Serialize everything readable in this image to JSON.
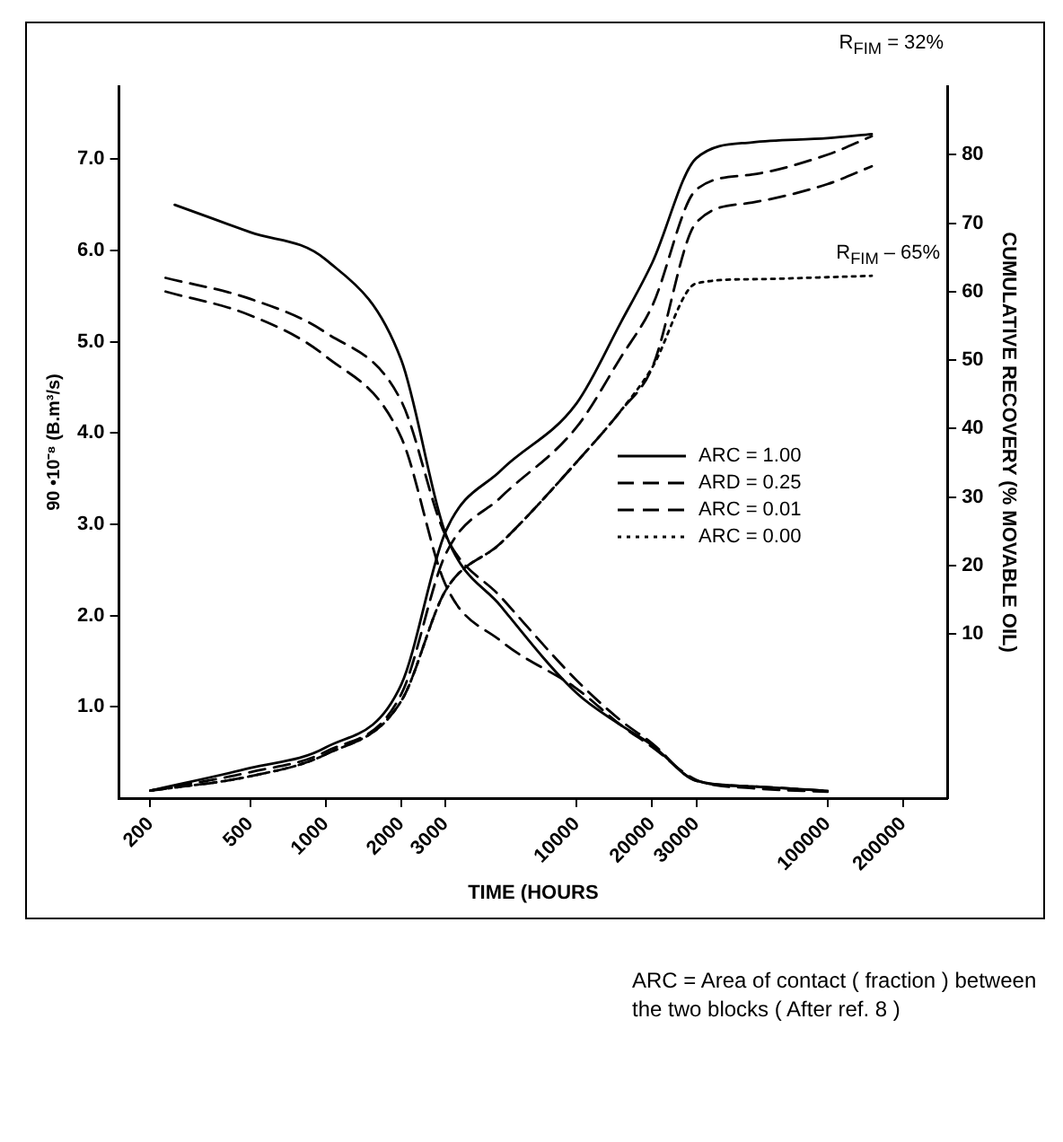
{
  "chart_data": {
    "type": "line",
    "xlabel": "TIME (HOURS",
    "ylabel": "90 •10⁻⁸ (B.m³/s)",
    "y2label": "CUMULATIVE RECOVERY (% MOVABLE OIL)",
    "annotations": [
      "R$_{FIM}$ = 32%",
      "R$_{FIM}$ – 65%",
      "ARC = Area of contact ( fraction ) between the two blocks ( After ref. 8 )"
    ],
    "log": "x",
    "xlim": [
      150,
      300000
    ],
    "xticks": [
      200,
      500,
      1000,
      2000,
      3000,
      10000,
      20000,
      30000,
      100000,
      200000
    ],
    "ylim": [
      0,
      7.8
    ],
    "yticks": [
      {
        "value": 1,
        "label": "1.0"
      },
      {
        "value": 2,
        "label": "2.0"
      },
      {
        "value": 3,
        "label": "3.0"
      },
      {
        "value": 4,
        "label": "4.0"
      },
      {
        "value": 5,
        "label": "5.0"
      },
      {
        "value": 6,
        "label": "6.0"
      },
      {
        "value": 7,
        "label": "7.0"
      }
    ],
    "y2lim": [
      -14,
      90
    ],
    "y2ticks": [
      10,
      20,
      30,
      40,
      50,
      60,
      70,
      80
    ],
    "grid": false,
    "legend": "right",
    "marker": "none",
    "series": [
      {
        "name": "ARC = 1.00",
        "color": "#000000",
        "line_style": "solid",
        "axis": "y2",
        "x": [
          200,
          500,
          1000,
          2000,
          3000,
          5000,
          10000,
          15000,
          20000,
          30000,
          50000,
          100000,
          150000
        ],
        "values": [
          -12.9,
          -9.6,
          -6.6,
          2.6,
          24.9,
          33.9,
          43.7,
          55.5,
          64.2,
          79.5,
          81.8,
          82.4,
          83
        ]
      },
      {
        "name": "ARD = 0.25",
        "color": "#000000",
        "line_style": "dashed",
        "axis": "y2",
        "x": [
          200,
          500,
          1000,
          2000,
          3000,
          5000,
          10000,
          15000,
          20000,
          30000,
          50000,
          100000,
          150000
        ],
        "values": [
          -12.9,
          -10.2,
          -7.2,
          1.2,
          21.6,
          30,
          40.2,
          50.4,
          57.9,
          74.9,
          77.1,
          80,
          82.7
        ]
      },
      {
        "name": "ARC = 0.01",
        "color": "#000000",
        "line_style": "dashed",
        "axis": "y2",
        "x": [
          200,
          500,
          1000,
          2000,
          3000,
          5000,
          10000,
          15000,
          20000,
          30000,
          50000,
          100000,
          150000
        ],
        "values": [
          -12.9,
          -10.8,
          -7.6,
          0.2,
          16.3,
          23.3,
          35.1,
          42.6,
          48.9,
          70.1,
          73,
          75.7,
          78.3
        ]
      },
      {
        "name": "ARC = 0.00",
        "color": "#000000",
        "line_style": "dotted",
        "axis": "y2",
        "x": [
          200,
          500,
          1000,
          2000,
          3000,
          5000,
          10000,
          15000,
          20000,
          30000,
          50000,
          100000,
          150000
        ],
        "values": [
          -12.9,
          -10.8,
          -7.6,
          0.2,
          16.3,
          23.3,
          35.1,
          42.6,
          48.9,
          61.2,
          61.8,
          62.1,
          62.3
        ]
      },
      {
        "color": "#000000",
        "line_style": "solid",
        "axis": "y",
        "x": [
          250,
          500,
          1000,
          2000,
          3000,
          5000,
          10000,
          15000,
          20000,
          30000,
          50000,
          100000
        ],
        "values": [
          6.5,
          6.2,
          5.9,
          4.8,
          2.9,
          2.1,
          1.15,
          0.8,
          0.58,
          0.19,
          0.13,
          0.08
        ]
      },
      {
        "color": "#000000",
        "line_style": "dashed",
        "axis": "y",
        "x": [
          230,
          500,
          1000,
          2000,
          3000,
          5000,
          10000,
          15000,
          20000,
          30000,
          50000,
          100000
        ],
        "values": [
          5.7,
          5.47,
          5.1,
          4.35,
          2.88,
          2.2,
          1.29,
          0.85,
          0.6,
          0.19,
          0.13,
          0.08
        ]
      },
      {
        "color": "#000000",
        "line_style": "dashed",
        "axis": "y",
        "x": [
          230,
          500,
          1000,
          2000,
          3000,
          5000,
          10000,
          15000,
          20000,
          30000,
          50000,
          100000
        ],
        "values": [
          5.55,
          5.29,
          4.84,
          3.95,
          2.34,
          1.72,
          1.2,
          0.8,
          0.56,
          0.2,
          0.11,
          0.07
        ]
      }
    ]
  }
}
